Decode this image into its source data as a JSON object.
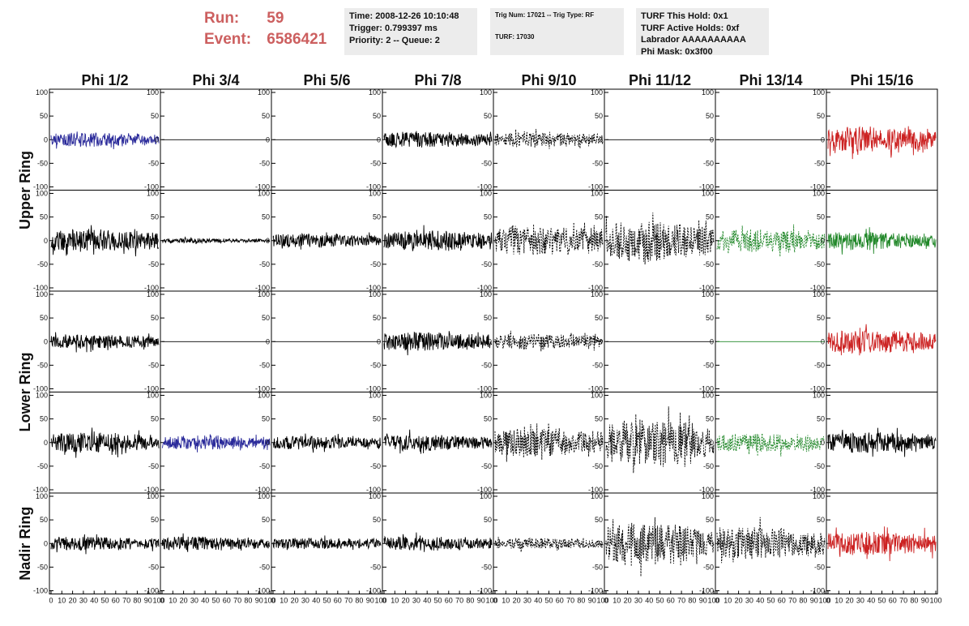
{
  "header": {
    "run_label": "Run:",
    "run_value": "59",
    "event_label": "Event:",
    "event_value": "6586421",
    "accent_color": "#cc5f5f"
  },
  "info_time": {
    "time": "Time: 2008-12-26 10:10:48",
    "trigger": "Trigger: 0.799397 ms",
    "priority": "Priority: 2 -- Queue: 2"
  },
  "info_trig": {
    "trig": "Trig Num: 17021 -- Trig Type: RF",
    "turf": "TURF: 17030"
  },
  "info_turf": {
    "hold": "TURF This Hold: 0x1",
    "active": "TURF Active Holds: 0xf",
    "labrador": "Labrador AAAAAAAAAA",
    "phimask": "Phi Mask: 0x3f00"
  },
  "chart_data": {
    "type": "line",
    "columns": [
      "Phi 1/2",
      "Phi 3/4",
      "Phi 5/6",
      "Phi 7/8",
      "Phi 9/10",
      "Phi 11/12",
      "Phi 13/14",
      "Phi 15/16"
    ],
    "ring_labels": [
      "Upper Ring",
      "Lower Ring",
      "Nadir Ring"
    ],
    "xlim": [
      0,
      100
    ],
    "xticks": [
      "0",
      "10",
      "20",
      "30",
      "40",
      "50",
      "60",
      "70",
      "80",
      "90",
      "100"
    ],
    "ylim": [
      -100,
      100
    ],
    "yticks": [
      "100",
      "50",
      "0",
      "-50",
      "-100"
    ],
    "colors": {
      "black": "#000000",
      "blue": "#2a2a9a",
      "red": "#cc2222",
      "green": "#22882a"
    },
    "rows": [
      {
        "ring": "Upper Ring",
        "cells": [
          {
            "color": "blue",
            "amplitude": 15,
            "dashed": false
          },
          {
            "color": "black",
            "amplitude": 0,
            "dashed": false
          },
          {
            "color": "black",
            "amplitude": 0,
            "dashed": false
          },
          {
            "color": "black",
            "amplitude": 17,
            "dashed": false
          },
          {
            "color": "black",
            "amplitude": 15,
            "dashed": true
          },
          {
            "color": "black",
            "amplitude": 0,
            "dashed": false
          },
          {
            "color": "black",
            "amplitude": 0,
            "dashed": false
          },
          {
            "color": "red",
            "amplitude": 28,
            "dashed": false
          }
        ]
      },
      {
        "ring": "Upper Ring",
        "cells": [
          {
            "color": "black",
            "amplitude": 25,
            "dashed": false
          },
          {
            "color": "black",
            "amplitude": 5,
            "dashed": false
          },
          {
            "color": "black",
            "amplitude": 15,
            "dashed": false
          },
          {
            "color": "black",
            "amplitude": 22,
            "dashed": false
          },
          {
            "color": "black",
            "amplitude": 32,
            "dashed": true
          },
          {
            "color": "black",
            "amplitude": 45,
            "dashed": true
          },
          {
            "color": "green",
            "amplitude": 25,
            "dashed": true
          },
          {
            "color": "green",
            "amplitude": 20,
            "dashed": false
          }
        ]
      },
      {
        "ring": "Lower Ring",
        "cells": [
          {
            "color": "black",
            "amplitude": 15,
            "dashed": false
          },
          {
            "color": "black",
            "amplitude": 0,
            "dashed": false
          },
          {
            "color": "black",
            "amplitude": 0,
            "dashed": false
          },
          {
            "color": "black",
            "amplitude": 20,
            "dashed": false
          },
          {
            "color": "black",
            "amplitude": 17,
            "dashed": true
          },
          {
            "color": "black",
            "amplitude": 0,
            "dashed": false
          },
          {
            "color": "green",
            "amplitude": 0,
            "dashed": false
          },
          {
            "color": "red",
            "amplitude": 25,
            "dashed": false
          }
        ]
      },
      {
        "ring": "Lower Ring",
        "cells": [
          {
            "color": "black",
            "amplitude": 22,
            "dashed": false
          },
          {
            "color": "blue",
            "amplitude": 15,
            "dashed": false
          },
          {
            "color": "black",
            "amplitude": 15,
            "dashed": false
          },
          {
            "color": "black",
            "amplitude": 18,
            "dashed": false
          },
          {
            "color": "black",
            "amplitude": 30,
            "dashed": true
          },
          {
            "color": "black",
            "amplitude": 50,
            "dashed": true
          },
          {
            "color": "green",
            "amplitude": 20,
            "dashed": true
          },
          {
            "color": "black",
            "amplitude": 22,
            "dashed": false
          }
        ]
      },
      {
        "ring": "Nadir Ring",
        "cells": [
          {
            "color": "black",
            "amplitude": 15,
            "dashed": false
          },
          {
            "color": "black",
            "amplitude": 15,
            "dashed": false
          },
          {
            "color": "black",
            "amplitude": 12,
            "dashed": false
          },
          {
            "color": "black",
            "amplitude": 15,
            "dashed": false
          },
          {
            "color": "black",
            "amplitude": 12,
            "dashed": true
          },
          {
            "color": "black",
            "amplitude": 45,
            "dashed": true
          },
          {
            "color": "black",
            "amplitude": 35,
            "dashed": true
          },
          {
            "color": "red",
            "amplitude": 25,
            "dashed": false
          }
        ]
      }
    ]
  }
}
